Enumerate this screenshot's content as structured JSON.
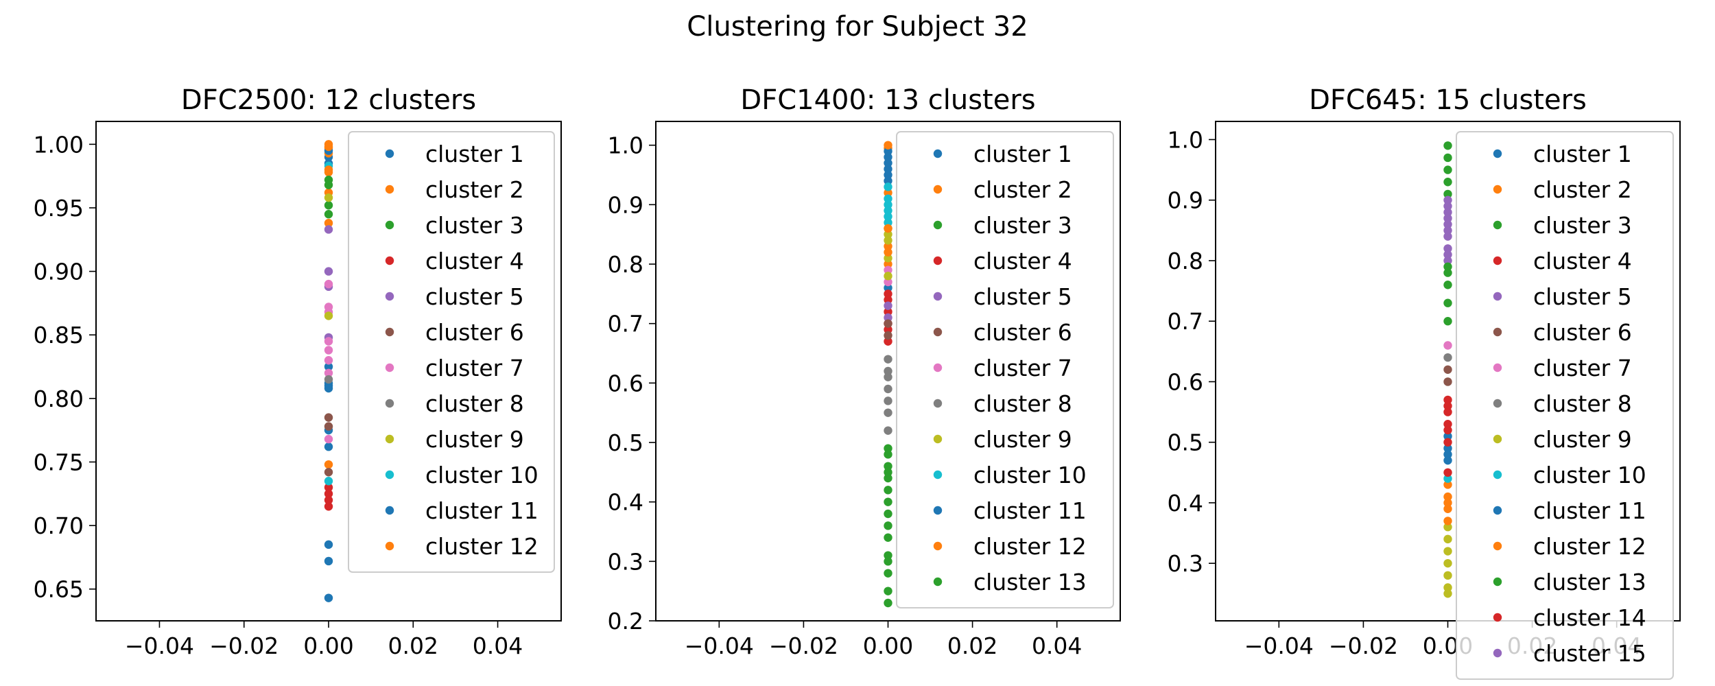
{
  "figure": {
    "suptitle": "Clustering for Subject 32"
  },
  "palette": [
    "#1f77b4",
    "#ff7f0e",
    "#2ca02c",
    "#d62728",
    "#9467bd",
    "#8c564b",
    "#e377c2",
    "#7f7f7f",
    "#bcbd22",
    "#17becf"
  ],
  "chart_data": [
    {
      "type": "scatter",
      "title": "DFC2500: 12 clusters",
      "xlabel": "",
      "ylabel": "",
      "xlim": [
        -0.055,
        0.055
      ],
      "ylim": [
        0.625,
        1.018
      ],
      "xticks": [
        -0.04,
        -0.02,
        0.0,
        0.02,
        0.04
      ],
      "xtick_labels": [
        "−0.04",
        "−0.02",
        "0.00",
        "0.02",
        "0.04"
      ],
      "yticks": [
        0.65,
        0.7,
        0.75,
        0.8,
        0.85,
        0.9,
        0.95,
        1.0
      ],
      "ytick_labels": [
        "0.65",
        "0.70",
        "0.75",
        "0.80",
        "0.85",
        "0.90",
        "0.95",
        "1.00"
      ],
      "legend_position": "upper right",
      "series": [
        {
          "name": "cluster 1",
          "x": 0.0,
          "y": [
            0.643,
            0.672,
            0.685,
            0.762,
            0.775,
            0.81,
            0.812,
            0.825,
            0.985,
            0.99
          ]
        },
        {
          "name": "cluster 2",
          "x": 0.0,
          "y": [
            0.748,
            0.938,
            0.962,
            0.978,
            0.993,
            0.997,
            1.0
          ]
        },
        {
          "name": "cluster 3",
          "x": 0.0,
          "y": [
            0.945,
            0.952,
            0.968,
            0.972
          ]
        },
        {
          "name": "cluster 4",
          "x": 0.0,
          "y": [
            0.715,
            0.72,
            0.725,
            0.73
          ]
        },
        {
          "name": "cluster 5",
          "x": 0.0,
          "y": [
            0.848,
            0.888,
            0.9,
            0.933
          ]
        },
        {
          "name": "cluster 6",
          "x": 0.0,
          "y": [
            0.742,
            0.778,
            0.785
          ]
        },
        {
          "name": "cluster 7",
          "x": 0.0,
          "y": [
            0.768,
            0.82,
            0.83,
            0.838,
            0.845,
            0.868,
            0.872,
            0.89
          ]
        },
        {
          "name": "cluster 8",
          "x": 0.0,
          "y": [
            0.815
          ]
        },
        {
          "name": "cluster 9",
          "x": 0.0,
          "y": [
            0.865,
            0.958
          ]
        },
        {
          "name": "cluster 10",
          "x": 0.0,
          "y": [
            0.735,
            0.983
          ]
        },
        {
          "name": "cluster 11",
          "x": 0.0,
          "y": [
            0.808,
            0.995
          ]
        },
        {
          "name": "cluster 12",
          "x": 0.0,
          "y": [
            0.98,
            0.998
          ]
        }
      ]
    },
    {
      "type": "scatter",
      "title": "DFC1400: 13 clusters",
      "xlabel": "",
      "ylabel": "",
      "xlim": [
        -0.055,
        0.055
      ],
      "ylim": [
        0.2,
        1.04
      ],
      "xticks": [
        -0.04,
        -0.02,
        0.0,
        0.02,
        0.04
      ],
      "xtick_labels": [
        "−0.04",
        "−0.02",
        "0.00",
        "0.02",
        "0.04"
      ],
      "yticks": [
        0.2,
        0.3,
        0.4,
        0.5,
        0.6,
        0.7,
        0.8,
        0.9,
        1.0
      ],
      "ytick_labels": [
        "0.2",
        "0.3",
        "0.4",
        "0.5",
        "0.6",
        "0.7",
        "0.8",
        "0.9",
        "1.0"
      ],
      "legend_position": "upper right",
      "series": [
        {
          "name": "cluster 1",
          "x": 0.0,
          "y": [
            0.76,
            0.94,
            0.96,
            0.97,
            0.98
          ]
        },
        {
          "name": "cluster 2",
          "x": 0.0,
          "y": [
            0.8,
            0.83,
            0.86,
            0.92,
            0.995
          ]
        },
        {
          "name": "cluster 3",
          "x": 0.0,
          "y": [
            0.23,
            0.25,
            0.28,
            0.3,
            0.31,
            0.34,
            0.36,
            0.38,
            0.4,
            0.42,
            0.44,
            0.46,
            0.48
          ]
        },
        {
          "name": "cluster 4",
          "x": 0.0,
          "y": [
            0.67,
            0.69,
            0.7,
            0.72,
            0.74,
            0.75
          ]
        },
        {
          "name": "cluster 5",
          "x": 0.0,
          "y": [
            0.71,
            0.73
          ]
        },
        {
          "name": "cluster 6",
          "x": 0.0,
          "y": [
            0.68,
            0.7
          ]
        },
        {
          "name": "cluster 7",
          "x": 0.0,
          "y": [
            0.77,
            0.79
          ]
        },
        {
          "name": "cluster 8",
          "x": 0.0,
          "y": [
            0.52,
            0.55,
            0.57,
            0.59,
            0.61,
            0.62,
            0.64
          ]
        },
        {
          "name": "cluster 9",
          "x": 0.0,
          "y": [
            0.78,
            0.81,
            0.84,
            0.85
          ]
        },
        {
          "name": "cluster 10",
          "x": 0.0,
          "y": [
            0.87,
            0.88,
            0.89,
            0.9,
            0.91,
            0.93
          ]
        },
        {
          "name": "cluster 11",
          "x": 0.0,
          "y": [
            0.95,
            0.99
          ]
        },
        {
          "name": "cluster 12",
          "x": 0.0,
          "y": [
            0.82,
            0.86,
            1.0
          ]
        },
        {
          "name": "cluster 13",
          "x": 0.0,
          "y": [
            0.45,
            0.49
          ]
        }
      ]
    },
    {
      "type": "scatter",
      "title": "DFC645: 15 clusters",
      "xlabel": "",
      "ylabel": "",
      "xlim": [
        -0.055,
        0.055
      ],
      "ylim": [
        0.205,
        1.03
      ],
      "xticks": [
        -0.04,
        -0.02,
        0.0,
        0.02,
        0.04
      ],
      "xtick_labels": [
        "−0.04",
        "−0.02",
        "0.00",
        "0.02",
        "0.04"
      ],
      "yticks": [
        0.3,
        0.4,
        0.5,
        0.6,
        0.7,
        0.8,
        0.9,
        1.0
      ],
      "ytick_labels": [
        "0.3",
        "0.4",
        "0.5",
        "0.6",
        "0.7",
        "0.8",
        "0.9",
        "1.0"
      ],
      "legend_position": "upper right",
      "series": [
        {
          "name": "cluster 1",
          "x": 0.0,
          "y": [
            0.47,
            0.49,
            0.51
          ]
        },
        {
          "name": "cluster 2",
          "x": 0.0,
          "y": [
            0.39,
            0.41,
            0.43
          ]
        },
        {
          "name": "cluster 3",
          "x": 0.0,
          "y": [
            0.91,
            0.93,
            0.95,
            0.97,
            0.99
          ]
        },
        {
          "name": "cluster 4",
          "x": 0.0,
          "y": [
            0.53,
            0.55,
            0.57
          ]
        },
        {
          "name": "cluster 5",
          "x": 0.0,
          "y": [
            0.8,
            0.82,
            0.84,
            0.86,
            0.88,
            0.9
          ]
        },
        {
          "name": "cluster 6",
          "x": 0.0,
          "y": [
            0.6,
            0.62
          ]
        },
        {
          "name": "cluster 7",
          "x": 0.0,
          "y": [
            0.66
          ]
        },
        {
          "name": "cluster 8",
          "x": 0.0,
          "y": [
            0.64
          ]
        },
        {
          "name": "cluster 9",
          "x": 0.0,
          "y": [
            0.25,
            0.26,
            0.28,
            0.3,
            0.32,
            0.34,
            0.36
          ]
        },
        {
          "name": "cluster 10",
          "x": 0.0,
          "y": [
            0.44
          ]
        },
        {
          "name": "cluster 11",
          "x": 0.0,
          "y": [
            0.48
          ]
        },
        {
          "name": "cluster 12",
          "x": 0.0,
          "y": [
            0.37,
            0.4
          ]
        },
        {
          "name": "cluster 13",
          "x": 0.0,
          "y": [
            0.7,
            0.73,
            0.76,
            0.78,
            0.79
          ]
        },
        {
          "name": "cluster 14",
          "x": 0.0,
          "y": [
            0.45,
            0.5,
            0.52,
            0.56
          ]
        },
        {
          "name": "cluster 15",
          "x": 0.0,
          "y": [
            0.81,
            0.85,
            0.87,
            0.89
          ]
        }
      ]
    }
  ]
}
